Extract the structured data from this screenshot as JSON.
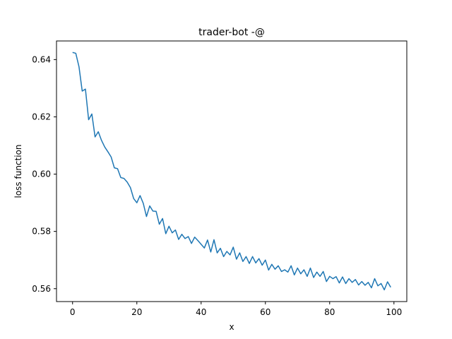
{
  "chart_data": {
    "type": "line",
    "title": "trader-bot -@",
    "xlabel": "x",
    "ylabel": "loss function",
    "xlim": [
      -5,
      104
    ],
    "ylim": [
      0.5555,
      0.6465
    ],
    "xticks": [
      0,
      20,
      40,
      60,
      80,
      100
    ],
    "yticks": [
      0.56,
      0.58,
      0.6,
      0.62,
      0.64
    ],
    "xtick_labels": [
      "0",
      "20",
      "40",
      "60",
      "80",
      "100"
    ],
    "ytick_labels": [
      "0.56",
      "0.58",
      "0.60",
      "0.62",
      "0.64"
    ],
    "grid": false,
    "line_color": "#1f77b4",
    "series": [
      {
        "x": [
          0,
          1,
          2,
          3,
          4,
          5,
          6,
          7,
          8,
          9,
          10,
          11,
          12,
          13,
          14,
          15,
          16,
          17,
          18,
          19,
          20,
          21,
          22,
          23,
          24,
          25,
          26,
          27,
          28,
          29,
          30,
          31,
          32,
          33,
          34,
          35,
          36,
          37,
          38,
          39,
          40,
          41,
          42,
          43,
          44,
          45,
          46,
          47,
          48,
          49,
          50,
          51,
          52,
          53,
          54,
          55,
          56,
          57,
          58,
          59,
          60,
          61,
          62,
          63,
          64,
          65,
          66,
          67,
          68,
          69,
          70,
          71,
          72,
          73,
          74,
          75,
          76,
          77,
          78,
          79,
          80,
          81,
          82,
          83,
          84,
          85,
          86,
          87,
          88,
          89,
          90,
          91,
          92,
          93,
          94,
          95,
          96,
          97,
          98,
          99
        ],
        "y": [
          0.6425,
          0.6422,
          0.6375,
          0.629,
          0.6297,
          0.619,
          0.621,
          0.613,
          0.6148,
          0.6118,
          0.6095,
          0.6078,
          0.606,
          0.6022,
          0.6019,
          0.5988,
          0.5985,
          0.5972,
          0.5953,
          0.5915,
          0.59,
          0.5925,
          0.5898,
          0.5852,
          0.5889,
          0.5871,
          0.587,
          0.5825,
          0.5845,
          0.5792,
          0.5818,
          0.5795,
          0.5805,
          0.5772,
          0.579,
          0.5775,
          0.5782,
          0.5758,
          0.578,
          0.5768,
          0.5755,
          0.5742,
          0.577,
          0.5728,
          0.5771,
          0.5725,
          0.5741,
          0.5712,
          0.573,
          0.5718,
          0.5745,
          0.5703,
          0.5725,
          0.5695,
          0.5712,
          0.5688,
          0.5712,
          0.569,
          0.5705,
          0.5682,
          0.57,
          0.5665,
          0.5685,
          0.5668,
          0.568,
          0.566,
          0.5666,
          0.5658,
          0.568,
          0.5648,
          0.5672,
          0.5652,
          0.5666,
          0.5643,
          0.5672,
          0.5639,
          0.5658,
          0.5643,
          0.566,
          0.5625,
          0.5643,
          0.5635,
          0.5642,
          0.562,
          0.5641,
          0.5618,
          0.5635,
          0.5622,
          0.5632,
          0.5613,
          0.5625,
          0.5612,
          0.5622,
          0.5603,
          0.5635,
          0.561,
          0.5618,
          0.5596,
          0.5624,
          0.5605
        ]
      }
    ]
  }
}
